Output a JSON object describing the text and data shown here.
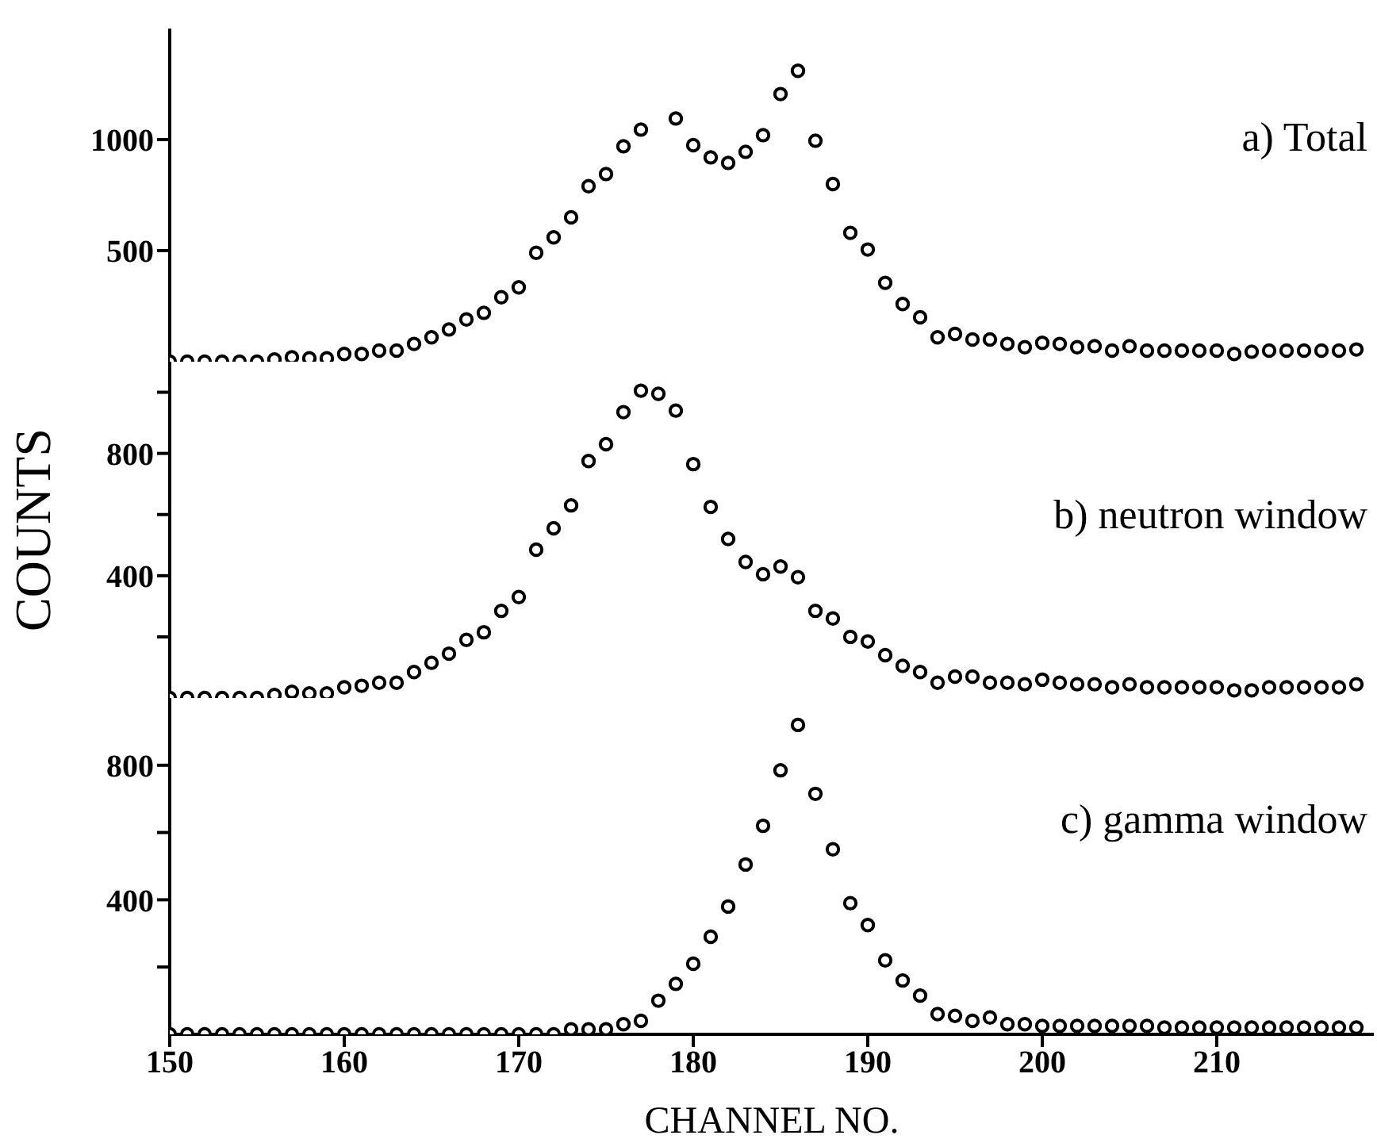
{
  "chart_data": [
    {
      "type": "scatter",
      "title": "a) Total",
      "marker": "circle",
      "tick_labels": "y",
      "x": [
        150,
        151,
        152,
        153,
        154,
        155,
        156,
        157,
        158,
        159,
        160,
        161,
        162,
        163,
        164,
        165,
        166,
        167,
        168,
        169,
        170,
        171,
        172,
        173,
        174,
        175,
        176,
        177,
        178,
        179,
        180,
        181,
        182,
        183,
        184,
        185,
        186,
        187,
        188,
        189,
        190,
        191,
        192,
        193,
        194,
        195,
        196,
        197,
        198,
        199,
        200,
        201,
        202,
        203,
        204,
        205,
        206,
        207,
        208,
        209,
        210,
        211,
        212,
        213,
        214,
        215,
        216,
        217,
        218
      ],
      "series": [
        {
          "color": "#000000",
          "values": [
            0,
            0,
            0,
            0,
            0,
            0,
            10,
            20,
            15,
            15,
            35,
            35,
            50,
            50,
            80,
            110,
            145,
            190,
            220,
            290,
            335,
            490,
            560,
            650,
            790,
            845,
            970,
            1045,
            null,
            1095,
            975,
            920,
            895,
            945,
            1020,
            1205,
            1310,
            995,
            800,
            580,
            505,
            355,
            260,
            200,
            110,
            125,
            100,
            100,
            80,
            65,
            85,
            80,
            65,
            70,
            50,
            70,
            50,
            50,
            50,
            50,
            50,
            35,
            45,
            50,
            50,
            50,
            50,
            50,
            55
          ]
        }
      ],
      "xlim": [
        150,
        219
      ],
      "xticks": [
        150,
        160,
        170,
        180,
        190,
        200,
        210
      ],
      "ylim": [
        0,
        1500
      ],
      "yticks": [
        500,
        1000
      ]
    },
    {
      "type": "scatter",
      "title": "b) neutron window",
      "ylabel": "COUNTS",
      "marker": "circle",
      "tick_labels": "y",
      "x": [
        150,
        151,
        152,
        153,
        154,
        155,
        156,
        157,
        158,
        159,
        160,
        161,
        162,
        163,
        164,
        165,
        166,
        167,
        168,
        169,
        170,
        171,
        172,
        173,
        174,
        175,
        176,
        177,
        178,
        179,
        180,
        181,
        182,
        183,
        184,
        185,
        186,
        187,
        188,
        189,
        190,
        191,
        192,
        193,
        194,
        195,
        196,
        197,
        198,
        199,
        200,
        201,
        202,
        203,
        204,
        205,
        206,
        207,
        208,
        209,
        210,
        211,
        212,
        213,
        214,
        215,
        216,
        217,
        218
      ],
      "series": [
        {
          "color": "#000000",
          "values": [
            0,
            0,
            0,
            0,
            0,
            0,
            10,
            20,
            15,
            15,
            35,
            40,
            50,
            50,
            85,
            115,
            145,
            190,
            215,
            285,
            330,
            485,
            555,
            630,
            775,
            830,
            935,
            1005,
            995,
            940,
            765,
            625,
            520,
            445,
            405,
            430,
            395,
            285,
            260,
            200,
            185,
            140,
            105,
            85,
            50,
            70,
            70,
            50,
            50,
            45,
            60,
            50,
            45,
            45,
            35,
            45,
            35,
            35,
            35,
            35,
            35,
            25,
            25,
            35,
            35,
            35,
            35,
            35,
            45
          ]
        }
      ],
      "xlim": [
        150,
        219
      ],
      "xticks": [
        150,
        160,
        170,
        180,
        190,
        200,
        210
      ],
      "ylim": [
        0,
        1100
      ],
      "yticks": [
        {
          "value": 200,
          "label": null
        },
        400,
        {
          "value": 600,
          "label": null
        },
        800,
        {
          "value": 1000,
          "label": null
        }
      ]
    },
    {
      "type": "scatter",
      "title": "c) gamma window",
      "xlabel": "CHANNEL NO.",
      "marker": "circle",
      "x": [
        150,
        151,
        152,
        153,
        154,
        155,
        156,
        157,
        158,
        159,
        160,
        161,
        162,
        163,
        164,
        165,
        166,
        167,
        168,
        169,
        170,
        171,
        172,
        173,
        174,
        175,
        176,
        177,
        178,
        179,
        180,
        181,
        182,
        183,
        184,
        185,
        186,
        187,
        188,
        189,
        190,
        191,
        192,
        193,
        194,
        195,
        196,
        197,
        198,
        199,
        200,
        201,
        202,
        203,
        204,
        205,
        206,
        207,
        208,
        209,
        210,
        211,
        212,
        213,
        214,
        215,
        216,
        217,
        218
      ],
      "series": [
        {
          "color": "#000000",
          "values": [
            0,
            0,
            0,
            0,
            0,
            0,
            0,
            0,
            0,
            0,
            0,
            0,
            0,
            0,
            0,
            0,
            0,
            0,
            0,
            0,
            0,
            0,
            0,
            15,
            15,
            15,
            30,
            40,
            100,
            150,
            210,
            290,
            380,
            505,
            620,
            785,
            920,
            715,
            550,
            390,
            325,
            220,
            160,
            115,
            60,
            55,
            40,
            50,
            30,
            30,
            25,
            25,
            25,
            25,
            25,
            25,
            25,
            20,
            20,
            20,
            20,
            20,
            20,
            20,
            20,
            20,
            20,
            20,
            20
          ]
        }
      ],
      "xlim": [
        150,
        219
      ],
      "xticks": [
        150,
        160,
        170,
        180,
        190,
        200,
        210
      ],
      "ylim": [
        0,
        1000
      ],
      "yticks": [
        {
          "value": 200,
          "label": null
        },
        400,
        {
          "value": 600,
          "label": null
        },
        800
      ]
    }
  ]
}
